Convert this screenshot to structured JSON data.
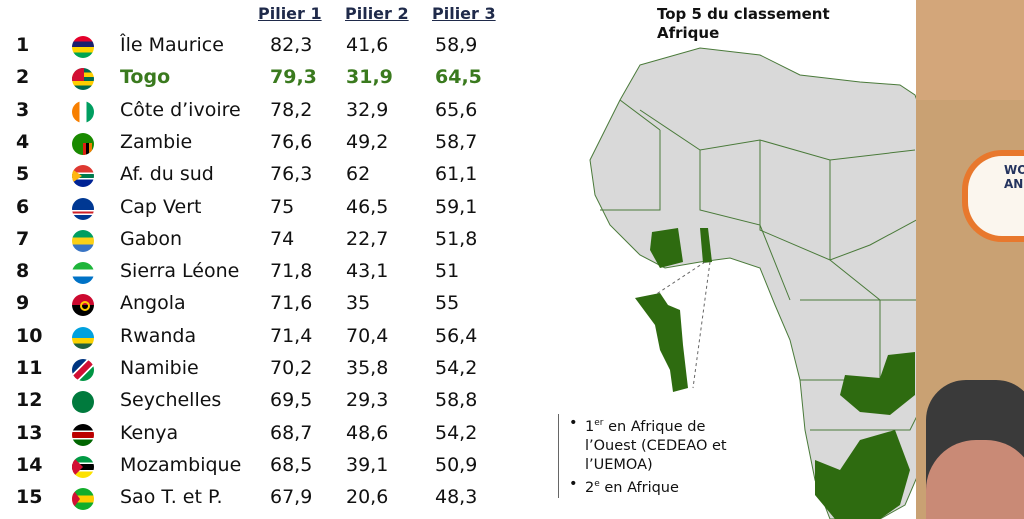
{
  "table": {
    "headers": [
      "Pilier 1",
      "Pilier 2",
      "Pilier 3"
    ],
    "highlight_color": "#3a7a1e",
    "rows": [
      {
        "rank": "1",
        "flag": "mauritius-flag-icon",
        "name": "Île Maurice",
        "p1": "82,3",
        "p2": "41,6",
        "p3": "58,9"
      },
      {
        "rank": "2",
        "flag": "togo-flag-icon",
        "name": "Togo",
        "p1": "79,3",
        "p2": "31,9",
        "p3": "64,5"
      },
      {
        "rank": "3",
        "flag": "cote-divoire-flag-icon",
        "name": "Côte d’ivoire",
        "p1": "78,2",
        "p2": "32,9",
        "p3": "65,6"
      },
      {
        "rank": "4",
        "flag": "zambia-flag-icon",
        "name": "Zambie",
        "p1": "76,6",
        "p2": "49,2",
        "p3": "58,7"
      },
      {
        "rank": "5",
        "flag": "south-africa-flag-icon",
        "name": "Af. du sud",
        "p1": "76,3",
        "p2": "62",
        "p3": "61,1"
      },
      {
        "rank": "6",
        "flag": "cape-verde-flag-icon",
        "name": "Cap Vert",
        "p1": "75",
        "p2": "46,5",
        "p3": "59,1"
      },
      {
        "rank": "7",
        "flag": "gabon-flag-icon",
        "name": "Gabon",
        "p1": "74",
        "p2": "22,7",
        "p3": "51,8"
      },
      {
        "rank": "8",
        "flag": "sierra-leone-flag-icon",
        "name": "Sierra Léone",
        "p1": "71,8",
        "p2": "43,1",
        "p3": "51"
      },
      {
        "rank": "9",
        "flag": "angola-flag-icon",
        "name": "Angola",
        "p1": "71,6",
        "p2": "35",
        "p3": "55"
      },
      {
        "rank": "10",
        "flag": "rwanda-flag-icon",
        "name": "Rwanda",
        "p1": "71,4",
        "p2": "70,4",
        "p3": "56,4"
      },
      {
        "rank": "11",
        "flag": "namibia-flag-icon",
        "name": "Namibie",
        "p1": "70,2",
        "p2": "35,8",
        "p3": "54,2"
      },
      {
        "rank": "12",
        "flag": "seychelles-flag-icon",
        "name": "Seychelles",
        "p1": "69,5",
        "p2": "29,3",
        "p3": "58,8"
      },
      {
        "rank": "13",
        "flag": "kenya-flag-icon",
        "name": "Kenya",
        "p1": "68,7",
        "p2": "48,6",
        "p3": "54,2"
      },
      {
        "rank": "14",
        "flag": "mozambique-flag-icon",
        "name": "Mozambique",
        "p1": "68,5",
        "p2": "39,1",
        "p3": "50,9"
      },
      {
        "rank": "15",
        "flag": "sao-tome-flag-icon",
        "name": "Sao T. et P.",
        "p1": "67,9",
        "p2": "20,6",
        "p3": "48,3"
      }
    ]
  },
  "map": {
    "title_line1": "Top 5 du classement",
    "title_line2": "Afrique",
    "land_color": "#d9d9d9",
    "highlight_color": "#2e6b10",
    "notes": [
      {
        "num": "1",
        "sup": "er",
        "text": " en Afrique de l’Ouest (CEDEAO et l’UEMOA)"
      },
      {
        "num": "2",
        "sup": "e",
        "text": " en Afrique"
      }
    ]
  },
  "logo": {
    "text_line1": "WO",
    "text_line2": "AN"
  }
}
